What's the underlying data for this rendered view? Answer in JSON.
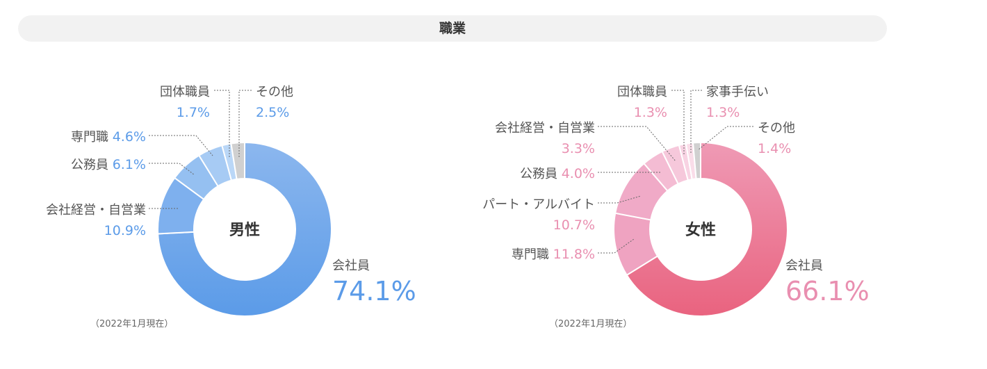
{
  "header": {
    "title": "職業"
  },
  "chart_data": [
    {
      "type": "pie",
      "center_label": "男性",
      "note": "（2022年1月現在）",
      "value_color": "#5b9be8",
      "slice_colors": [
        "#5b9be8",
        "#7eb0ee",
        "#95c0f1",
        "#a7cbf4",
        "#bad7f7",
        "#d0d0d0"
      ],
      "slices": [
        {
          "label": "会社員",
          "value": 74.1,
          "value_text": "74.1%"
        },
        {
          "label": "会社経営・自営業",
          "value": 10.9,
          "value_text": "10.9%"
        },
        {
          "label": "公務員",
          "value": 6.1,
          "value_text": "6.1%"
        },
        {
          "label": "専門職",
          "value": 4.6,
          "value_text": "4.6%"
        },
        {
          "label": "団体職員",
          "value": 1.7,
          "value_text": "1.7%"
        },
        {
          "label": "その他",
          "value": 2.5,
          "value_text": "2.5%"
        }
      ]
    },
    {
      "type": "pie",
      "center_label": "女性",
      "note": "（2022年1月現在）",
      "value_color": "#e98fb0",
      "slice_colors": [
        "#e9637f",
        "#efa3c1",
        "#f0aac7",
        "#f4bcd3",
        "#f6c8db",
        "#f8d3e3",
        "#fadde9",
        "#d0d0d0"
      ],
      "slices": [
        {
          "label": "会社員",
          "value": 66.1,
          "value_text": "66.1%"
        },
        {
          "label": "専門職",
          "value": 11.8,
          "value_text": "11.8%"
        },
        {
          "label": "パート・アルバイト",
          "value": 10.7,
          "value_text": "10.7%"
        },
        {
          "label": "公務員",
          "value": 4.0,
          "value_text": "4.0%"
        },
        {
          "label": "会社経営・自営業",
          "value": 3.3,
          "value_text": "3.3%"
        },
        {
          "label": "団体職員",
          "value": 1.3,
          "value_text": "1.3%"
        },
        {
          "label": "家事手伝い",
          "value": 1.3,
          "value_text": "1.3%"
        },
        {
          "label": "その他",
          "value": 1.4,
          "value_text": "1.4%"
        }
      ]
    }
  ]
}
